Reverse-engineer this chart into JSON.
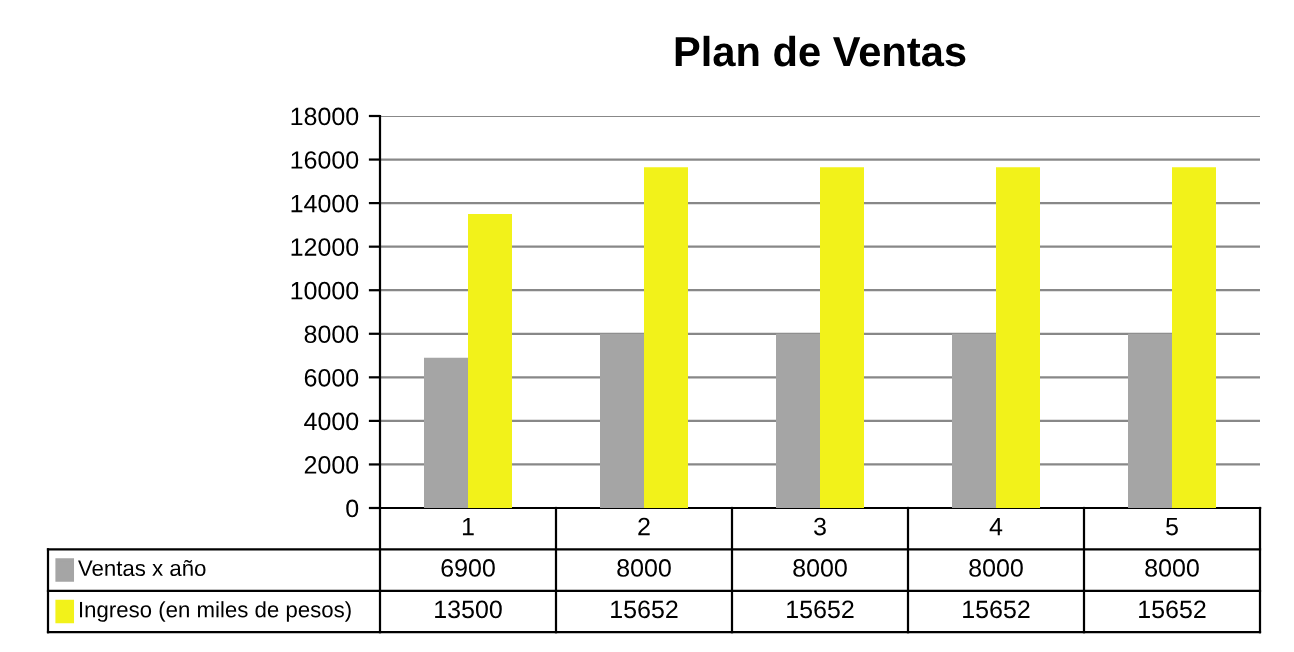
{
  "chart_data": {
    "type": "bar",
    "title": "Plan de Ventas",
    "categories": [
      "1",
      "2",
      "3",
      "4",
      "5"
    ],
    "series": [
      {
        "name": "Ventas x año",
        "color": "#a5a5a5",
        "values": [
          6900,
          8000,
          8000,
          8000,
          8000
        ]
      },
      {
        "name": "Ingreso (en miles de pesos)",
        "color": "#f2f21a",
        "values": [
          13500,
          15652,
          15652,
          15652,
          15652
        ]
      }
    ],
    "ylim": [
      0,
      18000
    ],
    "yticks": [
      0,
      2000,
      4000,
      6000,
      8000,
      10000,
      12000,
      14000,
      16000,
      18000
    ],
    "grid": "y",
    "legend": "bottom",
    "data_labels": true
  }
}
